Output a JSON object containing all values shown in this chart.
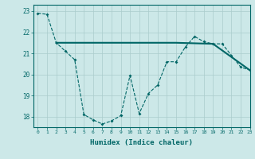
{
  "xlabel": "Humidex (Indice chaleur)",
  "ylabel": "",
  "background_color": "#cce8e8",
  "grid_color": "#aacccc",
  "line_color": "#006666",
  "xlim": [
    -0.5,
    23
  ],
  "ylim": [
    17.5,
    23.3
  ],
  "yticks": [
    18,
    19,
    20,
    21,
    22,
    23
  ],
  "xticks": [
    0,
    1,
    2,
    3,
    4,
    5,
    6,
    7,
    8,
    9,
    10,
    11,
    12,
    13,
    14,
    15,
    16,
    17,
    18,
    19,
    20,
    21,
    22,
    23
  ],
  "line1_x": [
    0,
    1,
    2,
    3,
    4,
    5,
    6,
    7,
    8,
    9,
    10,
    11,
    12,
    13,
    14,
    15,
    16,
    17,
    18,
    19,
    20,
    21,
    22,
    23
  ],
  "line1_y": [
    22.9,
    22.85,
    21.5,
    21.1,
    20.7,
    18.1,
    17.85,
    17.65,
    17.8,
    18.05,
    19.95,
    18.15,
    19.1,
    19.5,
    20.6,
    20.6,
    21.3,
    21.8,
    21.55,
    21.45,
    21.45,
    20.9,
    20.35,
    20.2
  ],
  "line2_x": [
    2,
    15,
    19,
    23
  ],
  "line2_y": [
    21.5,
    21.5,
    21.45,
    20.2
  ]
}
